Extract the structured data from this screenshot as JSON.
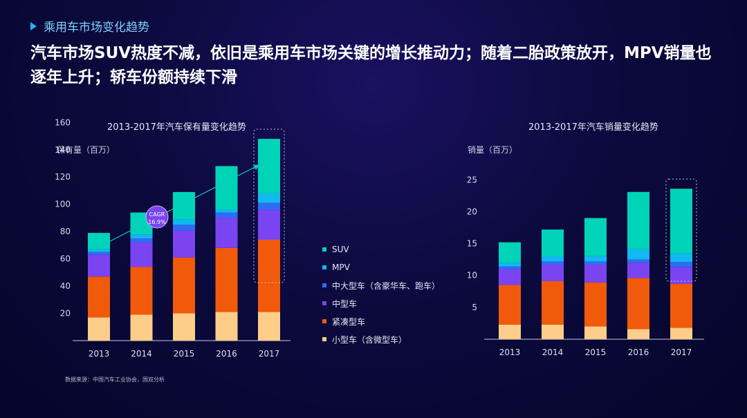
{
  "header": {
    "section": "乘用车市场变化趋势",
    "headline": "汽车市场SUV热度不减，依旧是乘用车市场关键的增长推动力；随着二胎政策放开，MPV销量也逐年上升；轿车份额持续下滑"
  },
  "source_note": "数据来源：中国汽车工业协会，国双分析",
  "legend": [
    {
      "name": "SUV",
      "color": "#00d4b8"
    },
    {
      "name": "MPV",
      "color": "#12b8f0"
    },
    {
      "name": "中大型车（含豪华车、跑车）",
      "color": "#2f6cf5"
    },
    {
      "name": "中型车",
      "color": "#7a44f0"
    },
    {
      "name": "紧凑型车",
      "color": "#f05a0a"
    },
    {
      "name": "小型车（含微型车）",
      "color": "#ffcd8a"
    }
  ],
  "cagr": {
    "label": "CAGR",
    "value": "16.9%"
  },
  "chart_data": [
    {
      "type": "bar",
      "stacked": true,
      "title": "2013-2017年汽车保有量变化趋势",
      "ylabel": "保有量（百万）",
      "categories": [
        "2013",
        "2014",
        "2015",
        "2016",
        "2017"
      ],
      "yticks": [
        20,
        40,
        60,
        80,
        100,
        120,
        140,
        160
      ],
      "ylim": [
        0,
        160
      ],
      "series": [
        {
          "name": "小型车（含微型车）",
          "values": [
            17,
            19,
            20,
            21,
            21
          ]
        },
        {
          "name": "紧凑型车",
          "values": [
            30,
            35,
            41,
            47,
            53
          ]
        },
        {
          "name": "中型车",
          "values": [
            16,
            18,
            20,
            22,
            22
          ]
        },
        {
          "name": "中大型车（含豪华车、跑车）",
          "values": [
            2,
            3,
            4,
            4,
            5
          ]
        },
        {
          "name": "MPV",
          "values": [
            2,
            3,
            4,
            2,
            7
          ]
        },
        {
          "name": "SUV",
          "values": [
            12,
            16,
            20,
            32,
            40
          ]
        }
      ],
      "highlight_category": "2017"
    },
    {
      "type": "bar",
      "stacked": true,
      "title": "2013-2017年汽车销量变化趋势",
      "ylabel": "销量（百万）",
      "categories": [
        "2013",
        "2014",
        "2015",
        "2016",
        "2017"
      ],
      "yticks": [
        5,
        10,
        15,
        20,
        25
      ],
      "ylim": [
        0,
        25
      ],
      "series": [
        {
          "name": "小型车（含微型车）",
          "values": [
            2.3,
            2.3,
            2.0,
            1.6,
            1.8
          ]
        },
        {
          "name": "紧凑型车",
          "values": [
            6.2,
            6.8,
            6.9,
            8.0,
            6.9
          ]
        },
        {
          "name": "中型车",
          "values": [
            2.5,
            2.6,
            2.8,
            2.4,
            2.6
          ]
        },
        {
          "name": "中大型车（含豪华车、跑车）",
          "values": [
            0.4,
            0.5,
            0.5,
            0.5,
            0.8
          ]
        },
        {
          "name": "MPV",
          "values": [
            0.6,
            0.8,
            0.9,
            1.6,
            1.4
          ]
        },
        {
          "name": "SUV",
          "values": [
            3.2,
            4.2,
            5.9,
            9.0,
            10.1
          ]
        }
      ],
      "highlight_category": "2017"
    }
  ]
}
